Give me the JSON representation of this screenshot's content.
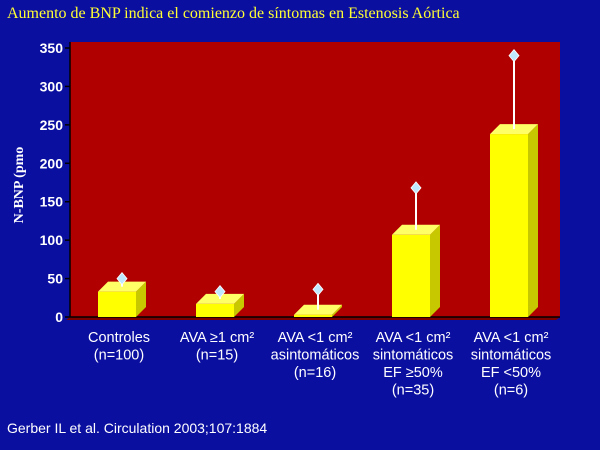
{
  "title": "Aumento de BNP indica el comienzo de síntomas en Estenosis Aórtica",
  "citation": "Gerber IL et al. Circulation 2003;107:1884",
  "colors": {
    "background": "#0b0fa0",
    "plot_area": "#b00000",
    "bar": "#ffff00",
    "error_bar": "#ffffff",
    "error_cap": "#bfe8ff",
    "title_text": "#ffff33",
    "axis_text": "#ffffff"
  },
  "chart_data": {
    "type": "bar",
    "ylabel": "N-BNP (pmo",
    "ylim": [
      0,
      350
    ],
    "yticks": [
      0,
      50,
      100,
      150,
      200,
      250,
      300,
      350
    ],
    "categories": [
      [
        "Controles",
        "(n=100)"
      ],
      [
        "AVA ≥1 cm²",
        "(n=15)"
      ],
      [
        "AVA <1 cm²",
        "asintomáticos",
        "(n=16)"
      ],
      [
        "AVA <1 cm²",
        "sintomáticos",
        "EF ≥50%",
        "(n=35)"
      ],
      [
        "AVA <1 cm²",
        "sintomáticos",
        "EF <50%",
        "(n=6)"
      ]
    ],
    "values": [
      33,
      17,
      3,
      107,
      238
    ],
    "error_upper": [
      50,
      33,
      36,
      168,
      340
    ],
    "grid": false,
    "legend": "none",
    "style": "3d-bars"
  }
}
